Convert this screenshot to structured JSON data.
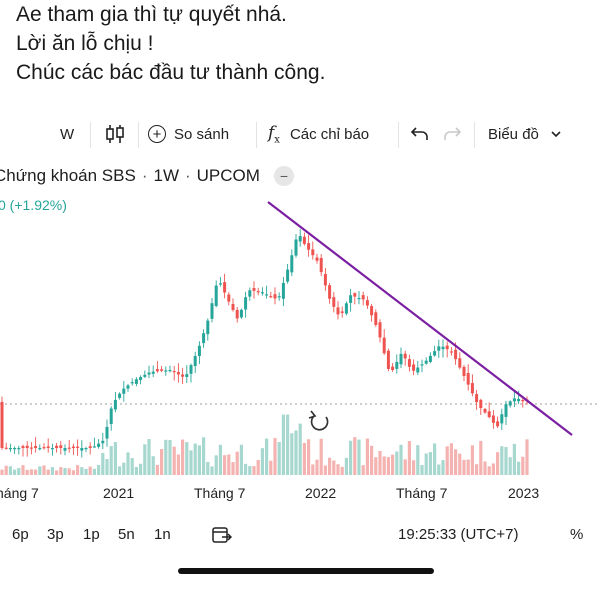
{
  "caption": {
    "lines": [
      "Ae tham gia thì tự quyết nhá.",
      "Lời ăn lỗ chịu !",
      "Chúc các bác đầu tư thành công."
    ],
    "cut_line": "Ae tham gia thì tự quyết nhá."
  },
  "toolbar": {
    "interval": "W",
    "compare_label": "So sánh",
    "indicators_label": "Các chỉ báo",
    "chart_type_label": "Biểu đồ",
    "icons": [
      "candles-icon",
      "plus-circle-icon",
      "fx-icon",
      "undo-icon",
      "redo-icon",
      "chevron-down-icon"
    ]
  },
  "symbol": {
    "name": "Chứng khoán SBS",
    "interval": "1W",
    "exchange": "UPCOM",
    "change": "0 (+1.92%)"
  },
  "colors": {
    "up": "#26a69a",
    "down": "#ef5350",
    "trendline": "#7b1fa2",
    "volume_up": "#a7d8cf",
    "volume_down": "#f4b3b0"
  },
  "chart_data": {
    "type": "candlestick",
    "x_tick_labels": [
      "háng 7",
      "2021",
      "Tháng 7",
      "2022",
      "Tháng 7",
      "2023"
    ],
    "trendline": "descending",
    "has_volume": true,
    "reset_icon": "reset-icon"
  },
  "bottom": {
    "ranges": [
      "6p",
      "3p",
      "1p",
      "5n",
      "1n"
    ],
    "time": "19:25:33 (UTC+7)",
    "percent_label": "%",
    "goto_icon": "goto-date-icon"
  }
}
